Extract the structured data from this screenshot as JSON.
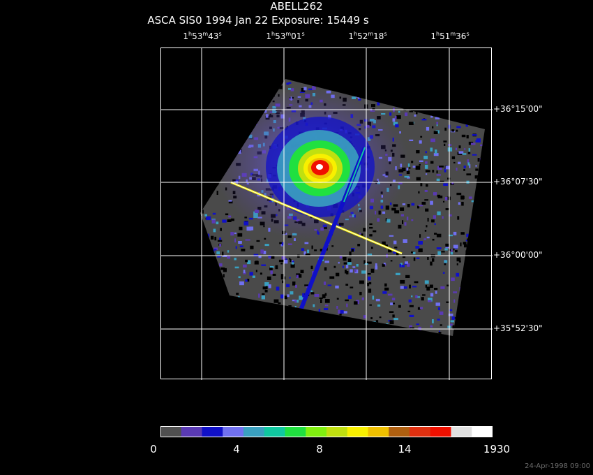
{
  "header": {
    "title": "ABELL262",
    "subtitle": "ASCA SIS0   1994 Jan 22    Exposure: 15449 s"
  },
  "ra_ticks": [
    {
      "h": "1",
      "m": "53",
      "s": "43"
    },
    {
      "h": "1",
      "m": "53",
      "s": "01"
    },
    {
      "h": "1",
      "m": "52",
      "s": "18"
    },
    {
      "h": "1",
      "m": "51",
      "s": "36"
    }
  ],
  "dec_ticks": [
    "+36°15'00\"",
    "+36°07'30\"",
    "+36°00'00\"",
    "+35°52'30\""
  ],
  "colorbar": {
    "colors": [
      "#505050",
      "#5a3ab4",
      "#1010c8",
      "#7070f0",
      "#3aa0c0",
      "#10c8a0",
      "#20e040",
      "#80f010",
      "#c0e010",
      "#f8f000",
      "#f0c000",
      "#b06010",
      "#e03010",
      "#f01000",
      "#e0e0e0",
      "#ffffff"
    ],
    "labels": [
      "0",
      "4",
      "8",
      "14",
      "1930"
    ]
  },
  "footer": {
    "timestamp": "24-Apr-1998 09:00"
  }
}
